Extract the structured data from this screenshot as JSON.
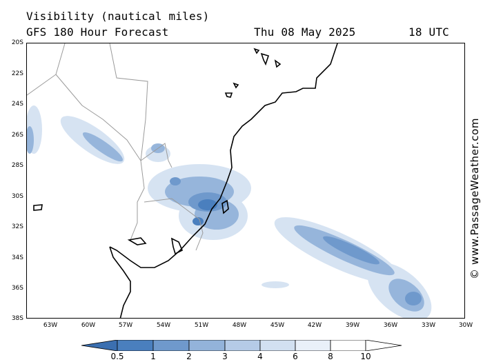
{
  "header": {
    "line1": "Visibility (nautical miles)",
    "line2": "GFS 180 Hour Forecast",
    "date": "Thu 08 May 2025",
    "time": "18 UTC"
  },
  "axes": {
    "lat_labels": [
      "20S",
      "22S",
      "24S",
      "26S",
      "28S",
      "30S",
      "32S",
      "34S",
      "36S",
      "38S"
    ],
    "lon_labels": [
      "63W",
      "60W",
      "57W",
      "54W",
      "51W",
      "48W",
      "45W",
      "42W",
      "39W",
      "36W",
      "33W",
      "30W"
    ]
  },
  "legend": {
    "values": [
      "0.5",
      "1",
      "2",
      "3",
      "4",
      "6",
      "8",
      "10"
    ],
    "colors": [
      "#3b6fb0",
      "#4a7fbe",
      "#6f99cc",
      "#93b3da",
      "#b5cbe7",
      "#d2e0f1",
      "#e9f0f9",
      "#ffffff"
    ]
  },
  "copyright": "© www.PassageWeather.com",
  "map": {
    "land_outline_color": "#000000",
    "border_color": "#9a9a9a",
    "low_visibility_color": "#4a7fbe"
  }
}
